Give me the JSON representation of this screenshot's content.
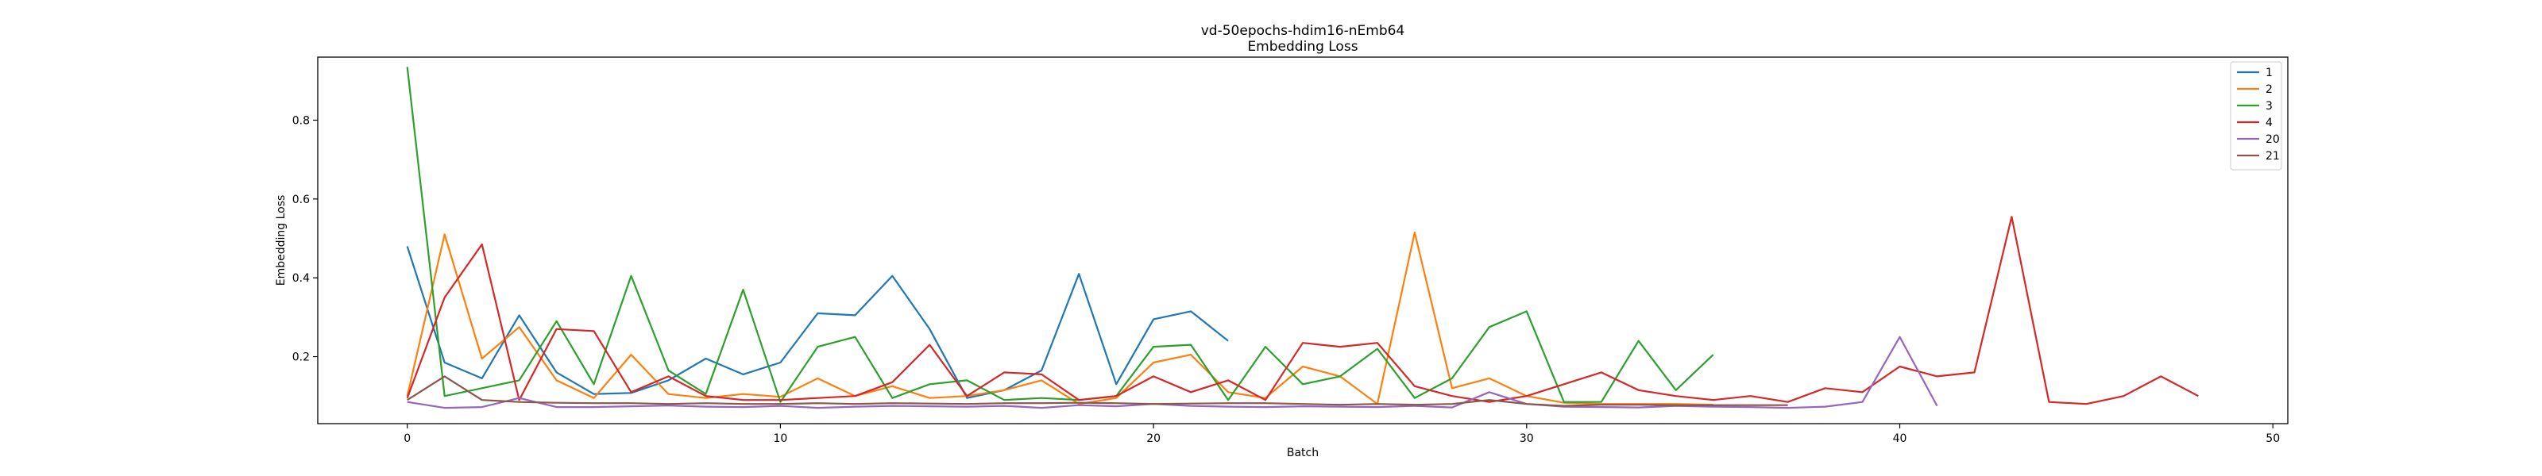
{
  "chart_data": {
    "type": "line",
    "title": "vd-50epochs-hdim16-nEmb64",
    "subtitle": "Embedding Loss",
    "xlabel": "Batch",
    "ylabel": "Embedding Loss",
    "xlim": [
      -2.4,
      50.4
    ],
    "ylim": [
      0.03,
      0.96
    ],
    "xticks": [
      0,
      10,
      20,
      30,
      40,
      50
    ],
    "yticks": [
      0.2,
      0.4,
      0.6,
      0.8
    ],
    "grid": false,
    "legend_position": "top-right",
    "series": [
      {
        "name": "1",
        "color": "#1f77b4",
        "x": [
          0,
          1,
          2,
          3,
          4,
          5,
          6,
          7,
          8,
          9,
          10,
          11,
          12,
          13,
          14,
          15,
          16,
          17,
          18,
          19,
          20,
          21,
          22
        ],
        "y": [
          0.48,
          0.185,
          0.145,
          0.305,
          0.16,
          0.105,
          0.108,
          0.14,
          0.195,
          0.155,
          0.185,
          0.31,
          0.305,
          0.405,
          0.27,
          0.095,
          0.115,
          0.165,
          0.41,
          0.13,
          0.295,
          0.315,
          0.24
        ]
      },
      {
        "name": "2",
        "color": "#ff7f0e",
        "x": [
          0,
          1,
          2,
          3,
          4,
          5,
          6,
          7,
          8,
          9,
          10,
          11,
          12,
          13,
          14,
          15,
          16,
          17,
          18,
          19,
          20,
          21,
          22,
          23,
          24,
          25,
          26,
          27,
          28,
          29,
          30,
          31,
          32,
          33,
          34,
          35
        ],
        "y": [
          0.1,
          0.51,
          0.195,
          0.275,
          0.14,
          0.095,
          0.205,
          0.105,
          0.095,
          0.105,
          0.098,
          0.145,
          0.1,
          0.125,
          0.095,
          0.1,
          0.115,
          0.14,
          0.08,
          0.095,
          0.185,
          0.205,
          0.11,
          0.095,
          0.175,
          0.15,
          0.08,
          0.515,
          0.12,
          0.145,
          0.1,
          0.083,
          0.08,
          0.08,
          0.08,
          0.078
        ]
      },
      {
        "name": "3",
        "color": "#2ca02c",
        "x": [
          0,
          1,
          2,
          3,
          4,
          5,
          6,
          7,
          8,
          9,
          10,
          11,
          12,
          13,
          14,
          15,
          16,
          17,
          18,
          19,
          20,
          21,
          22,
          23,
          24,
          25,
          26,
          27,
          28,
          29,
          30,
          31,
          32,
          33,
          34,
          35
        ],
        "y": [
          0.935,
          0.1,
          0.12,
          0.14,
          0.29,
          0.13,
          0.405,
          0.165,
          0.105,
          0.37,
          0.085,
          0.225,
          0.25,
          0.095,
          0.13,
          0.14,
          0.09,
          0.095,
          0.09,
          0.1,
          0.225,
          0.23,
          0.09,
          0.225,
          0.13,
          0.15,
          0.22,
          0.095,
          0.145,
          0.275,
          0.315,
          0.085,
          0.085,
          0.24,
          0.115,
          0.205
        ]
      },
      {
        "name": "4",
        "color": "#d62728",
        "x": [
          0,
          1,
          2,
          3,
          4,
          5,
          6,
          7,
          8,
          9,
          10,
          11,
          12,
          13,
          14,
          15,
          16,
          17,
          18,
          19,
          20,
          21,
          22,
          23,
          24,
          25,
          26,
          27,
          28,
          29,
          30,
          31,
          32,
          33,
          34,
          35,
          36,
          37,
          38,
          39,
          40,
          41,
          42,
          43,
          44,
          45,
          46,
          47,
          48
        ],
        "y": [
          0.095,
          0.35,
          0.485,
          0.09,
          0.27,
          0.265,
          0.11,
          0.15,
          0.1,
          0.09,
          0.09,
          0.095,
          0.1,
          0.135,
          0.23,
          0.1,
          0.16,
          0.155,
          0.09,
          0.1,
          0.15,
          0.11,
          0.14,
          0.09,
          0.235,
          0.225,
          0.235,
          0.125,
          0.1,
          0.085,
          0.1,
          0.13,
          0.16,
          0.115,
          0.1,
          0.09,
          0.1,
          0.085,
          0.12,
          0.11,
          0.175,
          0.15,
          0.16,
          0.555,
          0.085,
          0.08,
          0.1,
          0.15,
          0.1
        ]
      },
      {
        "name": "20",
        "color": "#9467bd",
        "x": [
          0,
          1,
          2,
          3,
          4,
          5,
          6,
          7,
          8,
          9,
          10,
          11,
          12,
          13,
          14,
          15,
          16,
          17,
          18,
          19,
          20,
          21,
          22,
          23,
          24,
          25,
          26,
          27,
          28,
          29,
          30,
          31,
          32,
          33,
          34,
          35,
          36,
          37,
          38,
          39,
          40,
          41
        ],
        "y": [
          0.085,
          0.07,
          0.072,
          0.095,
          0.072,
          0.072,
          0.074,
          0.076,
          0.073,
          0.072,
          0.075,
          0.07,
          0.073,
          0.075,
          0.074,
          0.073,
          0.075,
          0.07,
          0.077,
          0.074,
          0.08,
          0.075,
          0.073,
          0.072,
          0.074,
          0.073,
          0.072,
          0.075,
          0.071,
          0.11,
          0.08,
          0.073,
          0.072,
          0.071,
          0.075,
          0.073,
          0.072,
          0.07,
          0.073,
          0.085,
          0.25,
          0.075
        ]
      },
      {
        "name": "21",
        "color": "#8c564b",
        "x": [
          0,
          1,
          2,
          3,
          4,
          5,
          6,
          7,
          8,
          9,
          10,
          11,
          12,
          13,
          14,
          15,
          16,
          17,
          18,
          19,
          20,
          21,
          22,
          23,
          24,
          25,
          26,
          27,
          28,
          29,
          30,
          31,
          32,
          33,
          34,
          35,
          36,
          37
        ],
        "y": [
          0.09,
          0.15,
          0.09,
          0.085,
          0.083,
          0.082,
          0.082,
          0.08,
          0.082,
          0.08,
          0.08,
          0.082,
          0.08,
          0.082,
          0.081,
          0.08,
          0.082,
          0.082,
          0.083,
          0.082,
          0.08,
          0.081,
          0.082,
          0.082,
          0.08,
          0.078,
          0.08,
          0.078,
          0.08,
          0.09,
          0.08,
          0.075,
          0.078,
          0.078,
          0.077,
          0.077,
          0.077,
          0.077
        ]
      }
    ]
  }
}
